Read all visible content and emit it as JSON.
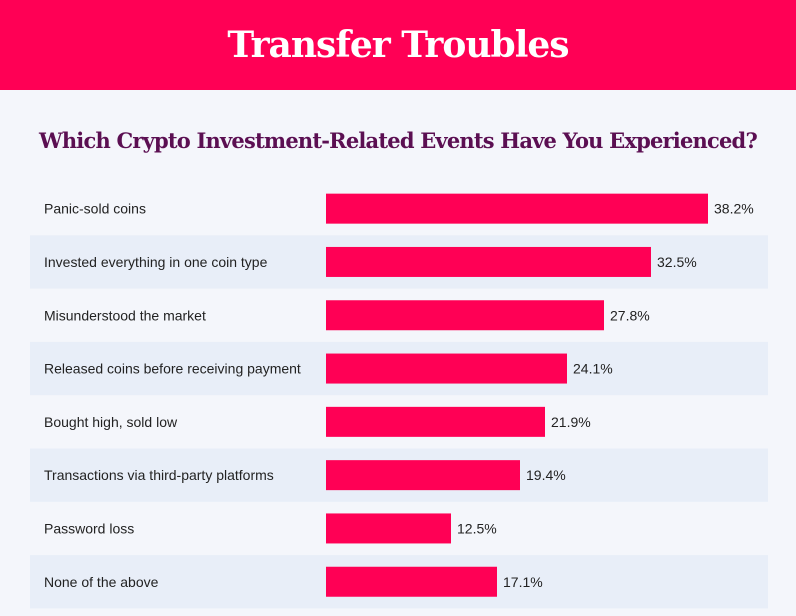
{
  "header": {
    "title": "Transfer Troubles"
  },
  "chart_data": {
    "type": "bar",
    "orientation": "horizontal",
    "title": "Which Crypto Investment-Related Events Have You Experienced?",
    "categories": [
      "Panic-sold coins",
      "Invested everything in one coin type",
      "Misunderstood the market",
      "Released coins before receiving payment",
      "Bought high, sold low",
      "Transactions via third-party platforms",
      "Password loss",
      "None of the above"
    ],
    "values": [
      38.2,
      32.5,
      27.8,
      24.1,
      21.9,
      19.4,
      12.5,
      17.1
    ],
    "data_labels": [
      "38.2%",
      "32.5%",
      "27.8%",
      "24.1%",
      "21.9%",
      "19.4%",
      "12.5%",
      "17.1%"
    ],
    "unit": "%",
    "grid": false,
    "legend": "none",
    "colors": {
      "bar": "#ff0055",
      "header": "#ff0055",
      "title": "#5b0f52",
      "row_alt": "#e8eef8",
      "background": "#f4f6fb"
    }
  }
}
